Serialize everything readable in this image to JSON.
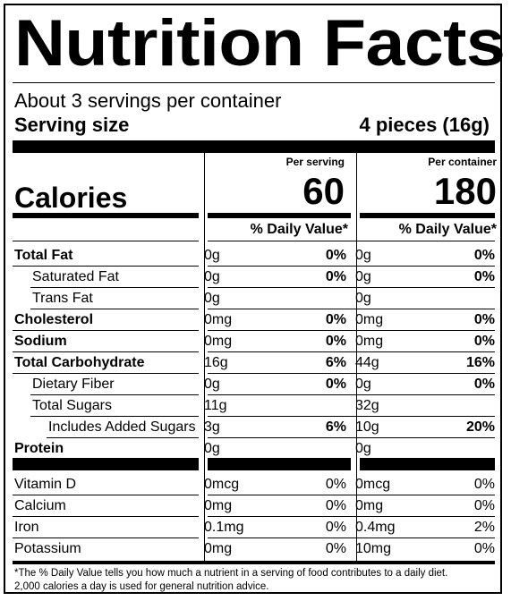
{
  "title": "Nutrition Facts",
  "servings_per_container": "About 3 servings per container",
  "serving_size_label": "Serving size",
  "serving_size_value": "4 pieces (16g)",
  "calories_label": "Calories",
  "columns": [
    {
      "header": "Per serving",
      "calories": "60",
      "dv_header": "% Daily Value*"
    },
    {
      "header": "Per container",
      "calories": "180",
      "dv_header": "% Daily Value*"
    }
  ],
  "nutrients": [
    {
      "name": "Total Fat",
      "bold": true,
      "indent": 0,
      "serving": {
        "amount": "0g",
        "dv": "0%"
      },
      "container": {
        "amount": "0g",
        "dv": "0%"
      }
    },
    {
      "name": "Saturated Fat",
      "bold": false,
      "indent": 1,
      "serving": {
        "amount": "0g",
        "dv": "0%"
      },
      "container": {
        "amount": "0g",
        "dv": "0%"
      }
    },
    {
      "name": "Trans Fat",
      "bold": false,
      "indent": 1,
      "serving": {
        "amount": "0g",
        "dv": ""
      },
      "container": {
        "amount": "0g",
        "dv": ""
      }
    },
    {
      "name": "Cholesterol",
      "bold": true,
      "indent": 0,
      "serving": {
        "amount": "0mg",
        "dv": "0%"
      },
      "container": {
        "amount": "0mg",
        "dv": "0%"
      }
    },
    {
      "name": "Sodium",
      "bold": true,
      "indent": 0,
      "serving": {
        "amount": "0mg",
        "dv": "0%"
      },
      "container": {
        "amount": "0mg",
        "dv": "0%"
      }
    },
    {
      "name": "Total Carbohydrate",
      "bold": true,
      "indent": 0,
      "serving": {
        "amount": "16g",
        "dv": "6%"
      },
      "container": {
        "amount": "44g",
        "dv": "16%"
      }
    },
    {
      "name": "Dietary Fiber",
      "bold": false,
      "indent": 1,
      "serving": {
        "amount": "0g",
        "dv": "0%"
      },
      "container": {
        "amount": "0g",
        "dv": "0%"
      }
    },
    {
      "name": "Total Sugars",
      "bold": false,
      "indent": 1,
      "serving": {
        "amount": "11g",
        "dv": ""
      },
      "container": {
        "amount": "32g",
        "dv": ""
      }
    },
    {
      "name": "Includes Added Sugars",
      "bold": false,
      "indent": 2,
      "serving": {
        "amount": "3g",
        "dv": "6%"
      },
      "container": {
        "amount": "10g",
        "dv": "20%"
      }
    },
    {
      "name": "Protein",
      "bold": true,
      "indent": 0,
      "serving": {
        "amount": "0g",
        "dv": ""
      },
      "container": {
        "amount": "0g",
        "dv": ""
      }
    }
  ],
  "vitamins": [
    {
      "name": "Vitamin D",
      "serving": {
        "amount": "0mcg",
        "dv": "0%"
      },
      "container": {
        "amount": "0mcg",
        "dv": "0%"
      }
    },
    {
      "name": "Calcium",
      "serving": {
        "amount": "0mg",
        "dv": "0%"
      },
      "container": {
        "amount": "0mg",
        "dv": "0%"
      }
    },
    {
      "name": "Iron",
      "serving": {
        "amount": "0.1mg",
        "dv": "0%"
      },
      "container": {
        "amount": "0.4mg",
        "dv": "2%"
      }
    },
    {
      "name": "Potassium",
      "serving": {
        "amount": "0mg",
        "dv": "0%"
      },
      "container": {
        "amount": "10mg",
        "dv": "0%"
      }
    }
  ],
  "footnote_line1": "*The % Daily Value tells you how much a nutrient in a serving of food contributes to a daily diet.",
  "footnote_line2": "2,000 calories a day is used for general nutrition advice."
}
